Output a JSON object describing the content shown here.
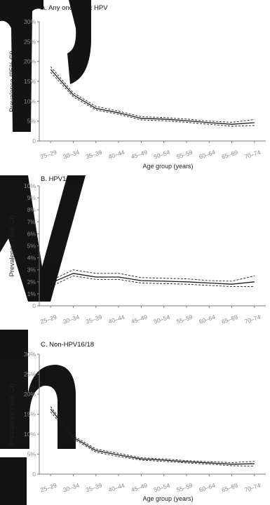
{
  "chart_data": [
    {
      "type": "line",
      "title": "A. Any oncogenic HPV",
      "xlabel": "Age group (years)",
      "ylabel": "Prevalence (95% CI)",
      "categories": [
        "25–29",
        "30–34",
        "35–39",
        "40–44",
        "45–49",
        "50–54",
        "55–59",
        "60–64",
        "65–69",
        "70–74"
      ],
      "yticks": [
        "0",
        "5%",
        "10%",
        "15%",
        "20%",
        "25%",
        "30%"
      ],
      "ylim": [
        0,
        30
      ],
      "grid": false,
      "series": [
        {
          "role": "estimate",
          "values": [
            18.0,
            11.6,
            8.2,
            7.1,
            5.7,
            5.5,
            5.1,
            4.6,
            4.2,
            4.6
          ]
        },
        {
          "role": "lower",
          "values": [
            17.3,
            11.1,
            7.8,
            6.7,
            5.3,
            5.1,
            4.7,
            4.2,
            3.7,
            3.9
          ]
        },
        {
          "role": "upper",
          "values": [
            18.7,
            12.1,
            8.7,
            7.5,
            6.1,
            5.9,
            5.5,
            5.0,
            4.7,
            5.4
          ]
        }
      ]
    },
    {
      "type": "line",
      "title": "B. HPV16/18",
      "xlabel": "",
      "ylabel": "Prevalence (95% CI)",
      "categories": [
        "25–29",
        "30–34",
        "35–39",
        "40–44",
        "45–49",
        "50–54",
        "55–59",
        "60–64",
        "65–69",
        "70–74"
      ],
      "yticks": [
        "0",
        "1%",
        "2%",
        "3%",
        "4%",
        "5%",
        "6%",
        "7%",
        "8%",
        "9%",
        "10%"
      ],
      "ylim": [
        0,
        10
      ],
      "grid": false,
      "series": [
        {
          "role": "estimate",
          "values": [
            1.9,
            2.7,
            2.4,
            2.4,
            2.1,
            2.05,
            2.0,
            1.9,
            1.8,
            2.0
          ]
        },
        {
          "role": "lower",
          "values": [
            1.6,
            2.5,
            2.2,
            2.2,
            1.9,
            1.85,
            1.8,
            1.7,
            1.6,
            1.6
          ]
        },
        {
          "role": "upper",
          "values": [
            2.1,
            3.0,
            2.7,
            2.7,
            2.35,
            2.3,
            2.25,
            2.1,
            2.05,
            2.5
          ]
        }
      ]
    },
    {
      "type": "line",
      "title": "C. Non-HPV16/18",
      "xlabel": "Age group (years)",
      "ylabel": "Prevalence (95% CI)",
      "categories": [
        "25–29",
        "30–34",
        "35–39",
        "40–44",
        "45–49",
        "50–54",
        "55–59",
        "60–64",
        "65–69",
        "70–74"
      ],
      "yticks": [
        "0",
        "5%",
        "10%",
        "15%",
        "20%",
        "25%",
        "30%"
      ],
      "ylim": [
        0,
        30
      ],
      "grid": false,
      "series": [
        {
          "role": "estimate",
          "values": [
            16.3,
            9.2,
            5.9,
            4.8,
            3.8,
            3.5,
            3.1,
            2.8,
            2.5,
            2.6
          ]
        },
        {
          "role": "lower",
          "values": [
            15.6,
            8.8,
            5.5,
            4.4,
            3.5,
            3.2,
            2.8,
            2.5,
            2.1,
            2.0
          ]
        },
        {
          "role": "upper",
          "values": [
            16.9,
            9.6,
            6.3,
            5.2,
            4.1,
            3.8,
            3.4,
            3.1,
            2.9,
            3.2
          ]
        }
      ]
    }
  ]
}
